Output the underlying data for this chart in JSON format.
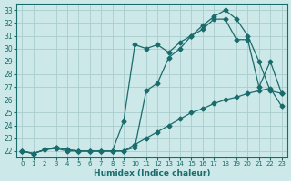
{
  "xlabel": "Humidex (Indice chaleur)",
  "bg_color": "#cce8e8",
  "grid_color": "#aacccc",
  "line_color": "#1a6b6b",
  "marker": "D",
  "marker_size": 2.5,
  "xlim": [
    -0.5,
    23.5
  ],
  "ylim": [
    21.5,
    33.5
  ],
  "xticks": [
    0,
    1,
    2,
    3,
    4,
    5,
    6,
    7,
    8,
    9,
    10,
    11,
    12,
    13,
    14,
    15,
    16,
    17,
    18,
    19,
    20,
    21,
    22,
    23
  ],
  "yticks": [
    22,
    23,
    24,
    25,
    26,
    27,
    28,
    29,
    30,
    31,
    32,
    33
  ],
  "line1_x": [
    0,
    1,
    2,
    3,
    4,
    5,
    6,
    7,
    8,
    9,
    10,
    11,
    12,
    13,
    14,
    15,
    16,
    17,
    18,
    19,
    20,
    21,
    22,
    23
  ],
  "line1_y": [
    22.0,
    21.8,
    22.1,
    22.2,
    22.0,
    22.0,
    22.0,
    22.0,
    22.0,
    22.0,
    22.5,
    23.0,
    23.5,
    24.0,
    24.5,
    25.0,
    25.3,
    25.7,
    26.0,
    26.2,
    26.5,
    26.7,
    26.9,
    25.5
  ],
  "line2_x": [
    0,
    1,
    2,
    3,
    4,
    5,
    6,
    7,
    8,
    9,
    10,
    11,
    12,
    13,
    14,
    15,
    16,
    17,
    18,
    19,
    20,
    21,
    22,
    23
  ],
  "line2_y": [
    22.0,
    21.8,
    22.1,
    22.3,
    22.1,
    22.0,
    22.0,
    22.0,
    22.0,
    22.0,
    22.3,
    26.7,
    27.3,
    29.3,
    30.0,
    31.0,
    31.8,
    32.5,
    33.0,
    32.3,
    31.0,
    29.0,
    26.7,
    26.5
  ],
  "line3_x": [
    0,
    1,
    2,
    3,
    4,
    5,
    6,
    7,
    8,
    9,
    10,
    11,
    12,
    13,
    14,
    15,
    16,
    17,
    18,
    19,
    20,
    21,
    22,
    23
  ],
  "line3_y": [
    22.0,
    21.8,
    22.1,
    22.3,
    22.1,
    22.0,
    22.0,
    22.0,
    22.0,
    24.3,
    30.3,
    30.0,
    30.3,
    29.7,
    30.5,
    31.0,
    31.5,
    32.3,
    32.3,
    30.7,
    30.7,
    27.0,
    29.0,
    26.5
  ]
}
